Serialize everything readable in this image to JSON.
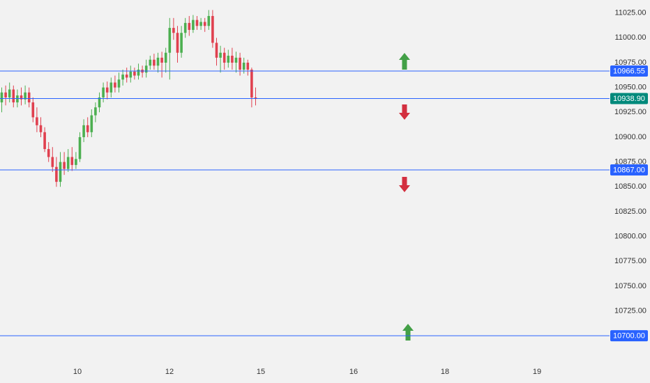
{
  "chart_data": {
    "type": "candlestick",
    "up_color": "#4caf50",
    "down_color": "#e0404f",
    "level_color": "#2962ff",
    "last_price_color": "#00897b",
    "ylim": [
      10684,
      11036
    ],
    "yticks": [
      {
        "value": 11025,
        "label": "11025.00"
      },
      {
        "value": 11000,
        "label": "11000.00"
      },
      {
        "value": 10975,
        "label": "10975.00"
      },
      {
        "value": 10950,
        "label": "10950.00"
      },
      {
        "value": 10925,
        "label": "10925.00"
      },
      {
        "value": 10900,
        "label": "10900.00"
      },
      {
        "value": 10875,
        "label": "10875.00"
      },
      {
        "value": 10850,
        "label": "10850.00"
      },
      {
        "value": 10825,
        "label": "10825.00"
      },
      {
        "value": 10800,
        "label": "10800.00"
      },
      {
        "value": 10775,
        "label": "10775.00"
      },
      {
        "value": 10750,
        "label": "10750.00"
      },
      {
        "value": 10725,
        "label": "10725.00"
      }
    ],
    "xticks": [
      "10",
      "12",
      "15",
      "16",
      "18",
      "19"
    ],
    "levels": [
      {
        "value": 10966.55,
        "label": "10966.55"
      },
      {
        "value": 10938.9,
        "label": "10938.90",
        "last": true
      },
      {
        "value": 10867,
        "label": "10867.00"
      },
      {
        "value": 10700,
        "label": "10700.00"
      }
    ],
    "candles": [
      {
        "open": 10935,
        "close": 10945,
        "high": 10950,
        "low": 10925
      },
      {
        "open": 10945,
        "close": 10940,
        "high": 10952,
        "low": 10932
      },
      {
        "open": 10940,
        "close": 10948,
        "high": 10955,
        "low": 10935
      },
      {
        "open": 10948,
        "close": 10935,
        "high": 10952,
        "low": 10930
      },
      {
        "open": 10935,
        "close": 10942,
        "high": 10948,
        "low": 10930
      },
      {
        "open": 10942,
        "close": 10938,
        "high": 10950,
        "low": 10932
      },
      {
        "open": 10938,
        "close": 10945,
        "high": 10952,
        "low": 10933
      },
      {
        "open": 10945,
        "close": 10935,
        "high": 10950,
        "low": 10930
      },
      {
        "open": 10935,
        "close": 10920,
        "high": 10940,
        "low": 10915
      },
      {
        "open": 10920,
        "close": 10912,
        "high": 10930,
        "low": 10905
      },
      {
        "open": 10912,
        "close": 10905,
        "high": 10920,
        "low": 10900
      },
      {
        "open": 10905,
        "close": 10888,
        "high": 10910,
        "low": 10885
      },
      {
        "open": 10888,
        "close": 10880,
        "high": 10895,
        "low": 10875
      },
      {
        "open": 10880,
        "close": 10870,
        "high": 10890,
        "low": 10865
      },
      {
        "open": 10870,
        "close": 10855,
        "high": 10880,
        "low": 10850
      },
      {
        "open": 10855,
        "close": 10875,
        "high": 10885,
        "low": 10850
      },
      {
        "open": 10875,
        "close": 10868,
        "high": 10885,
        "low": 10862
      },
      {
        "open": 10868,
        "close": 10880,
        "high": 10888,
        "low": 10865
      },
      {
        "open": 10880,
        "close": 10872,
        "high": 10890,
        "low": 10866
      },
      {
        "open": 10872,
        "close": 10878,
        "high": 10885,
        "low": 10868
      },
      {
        "open": 10878,
        "close": 10900,
        "high": 10905,
        "low": 10875
      },
      {
        "open": 10900,
        "close": 10912,
        "high": 10918,
        "low": 10895
      },
      {
        "open": 10912,
        "close": 10905,
        "high": 10920,
        "low": 10900
      },
      {
        "open": 10905,
        "close": 10922,
        "high": 10928,
        "low": 10900
      },
      {
        "open": 10922,
        "close": 10930,
        "high": 10935,
        "low": 10915
      },
      {
        "open": 10930,
        "close": 10940,
        "high": 10945,
        "low": 10925
      },
      {
        "open": 10940,
        "close": 10950,
        "high": 10955,
        "low": 10935
      },
      {
        "open": 10950,
        "close": 10945,
        "high": 10956,
        "low": 10938
      },
      {
        "open": 10945,
        "close": 10955,
        "high": 10960,
        "low": 10940
      },
      {
        "open": 10955,
        "close": 10950,
        "high": 10962,
        "low": 10945
      },
      {
        "open": 10950,
        "close": 10958,
        "high": 10965,
        "low": 10945
      },
      {
        "open": 10958,
        "close": 10963,
        "high": 10968,
        "low": 10952
      },
      {
        "open": 10963,
        "close": 10960,
        "high": 10970,
        "low": 10955
      },
      {
        "open": 10960,
        "close": 10966,
        "high": 10972,
        "low": 10955
      },
      {
        "open": 10966,
        "close": 10962,
        "high": 10970,
        "low": 10958
      },
      {
        "open": 10962,
        "close": 10968,
        "high": 10974,
        "low": 10958
      },
      {
        "open": 10968,
        "close": 10965,
        "high": 10972,
        "low": 10960
      },
      {
        "open": 10965,
        "close": 10972,
        "high": 10978,
        "low": 10960
      },
      {
        "open": 10972,
        "close": 10978,
        "high": 10982,
        "low": 10968
      },
      {
        "open": 10978,
        "close": 10972,
        "high": 10984,
        "low": 10968
      },
      {
        "open": 10972,
        "close": 10980,
        "high": 10985,
        "low": 10965
      },
      {
        "open": 10980,
        "close": 10975,
        "high": 10986,
        "low": 10960
      },
      {
        "open": 10975,
        "close": 10985,
        "high": 10990,
        "low": 10965
      },
      {
        "open": 10985,
        "close": 11010,
        "high": 11020,
        "low": 10958
      },
      {
        "open": 11010,
        "close": 11005,
        "high": 11020,
        "low": 10998
      },
      {
        "open": 11005,
        "close": 10985,
        "high": 11012,
        "low": 10975
      },
      {
        "open": 10985,
        "close": 11005,
        "high": 11012,
        "low": 10980
      },
      {
        "open": 11005,
        "close": 11015,
        "high": 11020,
        "low": 11000
      },
      {
        "open": 11015,
        "close": 11008,
        "high": 11022,
        "low": 11002
      },
      {
        "open": 11008,
        "close": 11018,
        "high": 11023,
        "low": 11005
      },
      {
        "open": 11018,
        "close": 11012,
        "high": 11022,
        "low": 11008
      },
      {
        "open": 11012,
        "close": 11016,
        "high": 11020,
        "low": 11008
      },
      {
        "open": 11016,
        "close": 11012,
        "high": 11020,
        "low": 11006
      },
      {
        "open": 11012,
        "close": 11022,
        "high": 11028,
        "low": 11008
      },
      {
        "open": 11022,
        "close": 10995,
        "high": 11028,
        "low": 10990
      },
      {
        "open": 10995,
        "close": 10980,
        "high": 11000,
        "low": 10972
      },
      {
        "open": 10980,
        "close": 10985,
        "high": 10992,
        "low": 10965
      },
      {
        "open": 10985,
        "close": 10975,
        "high": 10990,
        "low": 10968
      },
      {
        "open": 10975,
        "close": 10982,
        "high": 10988,
        "low": 10970
      },
      {
        "open": 10982,
        "close": 10975,
        "high": 10990,
        "low": 10968
      },
      {
        "open": 10975,
        "close": 10980,
        "high": 10986,
        "low": 10965
      },
      {
        "open": 10980,
        "close": 10968,
        "high": 10985,
        "low": 10962
      },
      {
        "open": 10968,
        "close": 10975,
        "high": 10980,
        "low": 10964
      },
      {
        "open": 10975,
        "close": 10968,
        "high": 10978,
        "low": 10962
      },
      {
        "open": 10968,
        "close": 10940,
        "high": 10970,
        "low": 10930
      },
      {
        "open": 10940,
        "close": 10938.9,
        "high": 10950,
        "low": 10932
      }
    ]
  }
}
